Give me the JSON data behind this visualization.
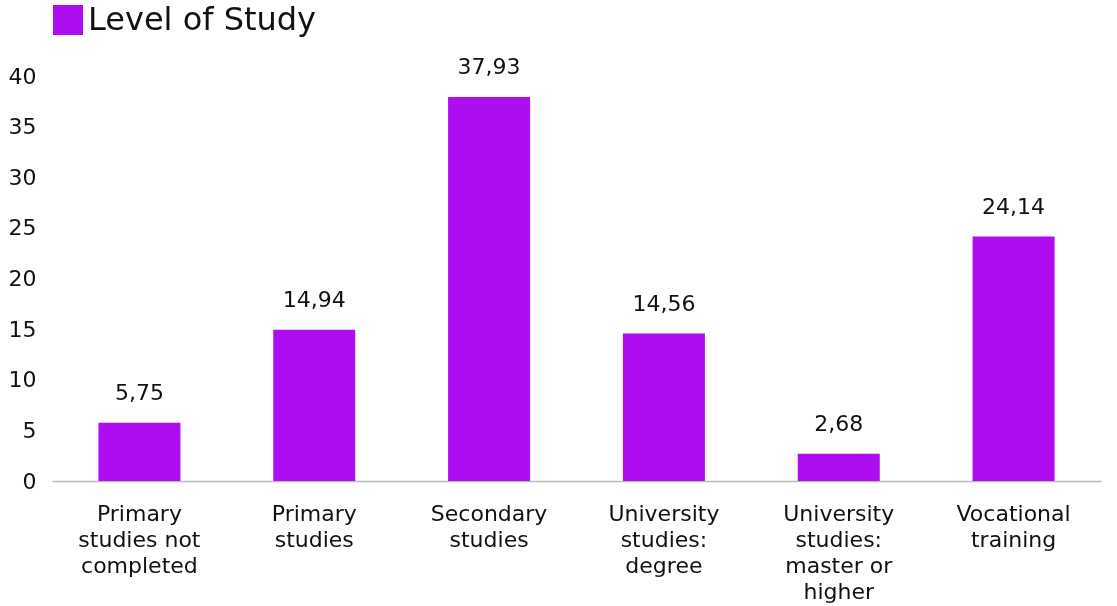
{
  "chart_data": {
    "type": "bar",
    "categories": [
      "Primary studies not completed",
      "Primary studies",
      "Secondary studies",
      "University studies: degree",
      "University studies: master or higher",
      "Vocational training"
    ],
    "series": [
      {
        "name": "Level of Study",
        "color": "#ad0df0",
        "values": [
          5.75,
          14.94,
          37.93,
          14.56,
          2.68,
          24.14
        ]
      }
    ],
    "value_labels": [
      "5,75",
      "14,94",
      "37,93",
      "14,56",
      "2,68",
      "24,14"
    ],
    "ylim": [
      0,
      40
    ],
    "yticks": [
      0,
      5,
      10,
      15,
      20,
      25,
      30,
      35,
      40
    ],
    "grid": false,
    "legend": "top"
  }
}
